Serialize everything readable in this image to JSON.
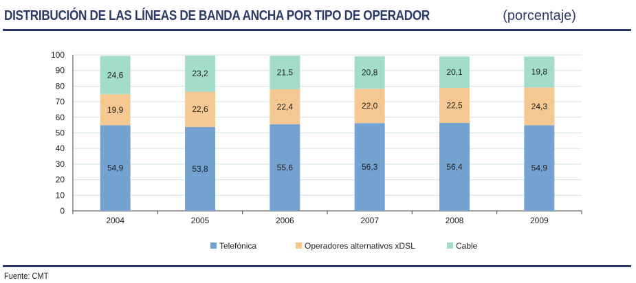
{
  "header": {
    "title": "DISTRIBUCIÓN DE LAS LÍNEAS DE BANDA ANCHA POR TIPO DE OPERADOR",
    "subtitle": "(porcentaje)"
  },
  "footer": {
    "source": "Fuente: CMT"
  },
  "colors": {
    "telefonica": "#74a3d2",
    "alternativos": "#f4c890",
    "cable": "#a3dcca",
    "grid": "#cfe3e0",
    "title": "#2b3a66"
  },
  "chart_data": {
    "type": "bar",
    "stacked": true,
    "title": "DISTRIBUCIÓN DE LAS LÍNEAS DE BANDA ANCHA POR TIPO DE OPERADOR (porcentaje)",
    "categories": [
      "2004",
      "2005",
      "2006",
      "2007",
      "2008",
      "2009"
    ],
    "series": [
      {
        "name": "Telefónica",
        "key": "telefonica",
        "values": [
          54.9,
          53.8,
          55.6,
          56.3,
          56.4,
          54.9
        ],
        "labels": [
          "54,9",
          "53,8",
          "55,6",
          "56,3",
          "56,4",
          "54,9"
        ]
      },
      {
        "name": "Operadores alternativos xDSL",
        "key": "alternativos",
        "values": [
          19.9,
          22.6,
          22.4,
          22.0,
          22.5,
          24.3
        ],
        "labels": [
          "19,9",
          "22,6",
          "22,4",
          "22,0",
          "22,5",
          "24,3"
        ]
      },
      {
        "name": "Cable",
        "key": "cable",
        "values": [
          24.6,
          23.2,
          21.5,
          20.8,
          20.1,
          19.8
        ],
        "labels": [
          "24,6",
          "23,2",
          "21,5",
          "20,8",
          "20,1",
          "19,8"
        ]
      }
    ],
    "ylim": [
      0,
      100
    ],
    "yticks": [
      "0",
      "10",
      "20",
      "30",
      "40",
      "50",
      "60",
      "70",
      "80",
      "90",
      "100"
    ],
    "xlabel": "",
    "ylabel": "",
    "grid": true,
    "legend_position": "bottom"
  }
}
